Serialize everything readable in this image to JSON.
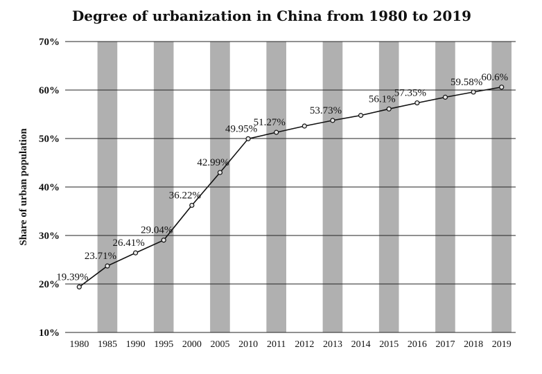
{
  "chart_data": {
    "type": "line",
    "title": "Degree of urbanization in China from 1980 to 2019",
    "xlabel": "",
    "ylabel": "Share of urban population",
    "categories": [
      "1980",
      "1985",
      "1990",
      "1995",
      "2000",
      "2005",
      "2010",
      "2011",
      "2012",
      "2013",
      "2014",
      "2015",
      "2016",
      "2017",
      "2018",
      "2019"
    ],
    "values": [
      19.39,
      23.71,
      26.41,
      29.04,
      36.22,
      42.99,
      49.95,
      51.27,
      52.57,
      53.73,
      54.77,
      56.1,
      57.35,
      58.52,
      59.58,
      60.6
    ],
    "data_labels": [
      "19.39%",
      "23.71%",
      "26.41%",
      "29.04%",
      "36.22%",
      "42.99%",
      "49.95%",
      "51.27%",
      "",
      "53.73%",
      "",
      "56.1%",
      "57.35%",
      "",
      "59.58%",
      "60.6%"
    ],
    "y_ticks": [
      "10%",
      "20%",
      "30%",
      "40%",
      "50%",
      "60%",
      "70%"
    ],
    "ylim": [
      10,
      70
    ],
    "grid": "horizontal",
    "striped_background": true,
    "colors": {
      "line": "#111111",
      "stripe": "#b0b0b0",
      "background": "#ffffff"
    }
  }
}
